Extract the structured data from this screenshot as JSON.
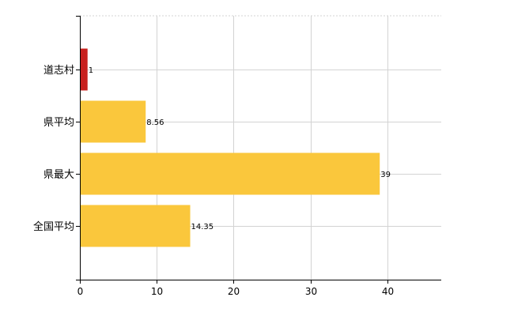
{
  "chart_data": {
    "type": "bar",
    "orientation": "horizontal",
    "categories": [
      "道志村",
      "県平均",
      "県最大",
      "全国平均"
    ],
    "values": [
      1,
      8.56,
      39,
      14.35
    ],
    "value_labels": [
      "1",
      "8.56",
      "39",
      "14.35"
    ],
    "bar_colors": [
      "#c8201e",
      "#fac73c",
      "#fac73c",
      "#fac73c"
    ],
    "xlim": [
      0,
      47
    ],
    "xticks": [
      0,
      10,
      20,
      30,
      40
    ],
    "xtick_labels": [
      "0",
      "10",
      "20",
      "30",
      "40"
    ],
    "grid": true,
    "title": "",
    "xlabel": "",
    "ylabel": ""
  }
}
